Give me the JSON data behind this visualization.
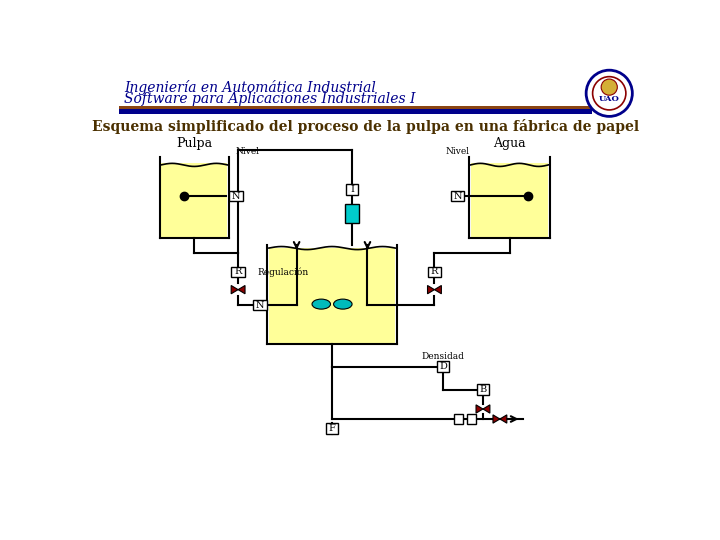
{
  "title_line1": "Ingeniería en Automática Industrial",
  "title_line2": "Software para Aplicaciones Industriales I",
  "subtitle": "Esquema simplificado del proceso de la pulpa en una fábrica de papel",
  "title_color": "#00008B",
  "subtitle_color": "#4B3000",
  "header_bar_color1": "#8B4513",
  "header_bar_color2": "#00008B",
  "bg_color": "#FFFFFF",
  "tank_fill_color": "#FFFF99",
  "cyan_block_color": "#00CCCC",
  "valve_color": "#8B0000"
}
